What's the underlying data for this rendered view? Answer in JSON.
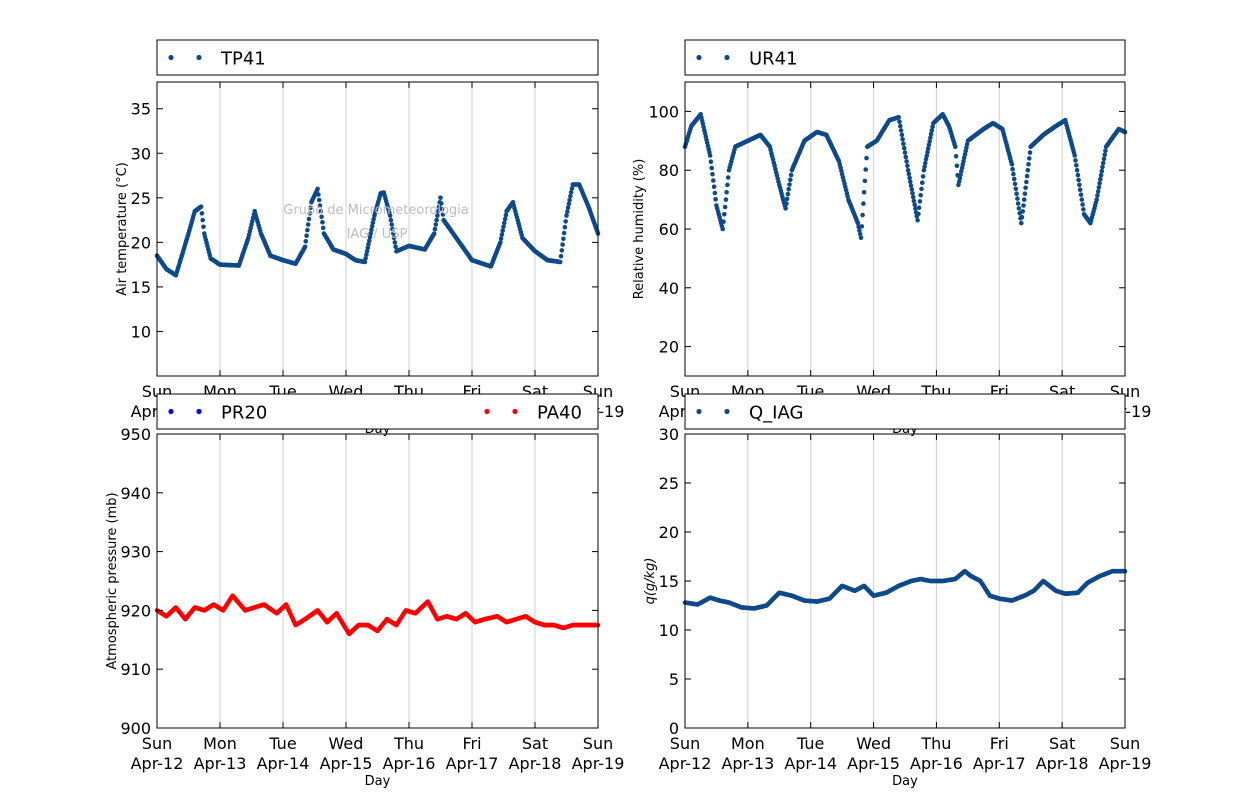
{
  "figure": {
    "x_ticks": [
      {
        "day": "Sun",
        "date": "Apr-12"
      },
      {
        "day": "Mon",
        "date": "Apr-13"
      },
      {
        "day": "Tue",
        "date": "Apr-14"
      },
      {
        "day": "Wed",
        "date": "Apr-15"
      },
      {
        "day": "Thu",
        "date": "Apr-16"
      },
      {
        "day": "Fri",
        "date": "Apr-17"
      },
      {
        "day": "Sat",
        "date": "Apr-18"
      },
      {
        "day": "Sun",
        "date": "Apr-19"
      }
    ],
    "xlabel": "Day",
    "watermark": [
      "Grupo de Micrometeorologia",
      "IAG / USP"
    ]
  },
  "chart_data": [
    {
      "type": "scatter",
      "xlabel": "Day",
      "ylabel": "Air temperature (°C)",
      "xlim": [
        "Apr-12",
        "Apr-19"
      ],
      "ylim": [
        5,
        38
      ],
      "yticks": [
        10,
        15,
        20,
        25,
        30,
        35
      ],
      "grid": "vertical",
      "legend_placement": "top",
      "series": [
        {
          "name": "TP41",
          "color": "#0e4a8a",
          "x": [
            0,
            0.15,
            0.3,
            0.5,
            0.6,
            0.7,
            0.75,
            0.85,
            1.0,
            1.3,
            1.45,
            1.55,
            1.65,
            1.8,
            2.0,
            2.2,
            2.35,
            2.45,
            2.55,
            2.65,
            2.8,
            3.0,
            3.15,
            3.3,
            3.45,
            3.55,
            3.6,
            3.7,
            3.8,
            4.0,
            4.25,
            4.4,
            4.5,
            4.55,
            4.7,
            5.0,
            5.3,
            5.45,
            5.55,
            5.65,
            5.8,
            6.0,
            6.2,
            6.4,
            6.5,
            6.6,
            6.7,
            6.85,
            7.0
          ],
          "y": [
            18.5,
            17.0,
            16.3,
            21,
            23.5,
            24,
            21,
            18.2,
            17.5,
            17.4,
            20.5,
            23.5,
            21,
            18.5,
            18.0,
            17.6,
            19.5,
            24.5,
            26,
            21,
            19.2,
            18.7,
            18.0,
            17.8,
            23,
            25.5,
            25.6,
            23,
            19,
            19.6,
            19.2,
            21,
            25,
            22.5,
            21,
            18.0,
            17.3,
            20,
            23.5,
            24.5,
            20.5,
            19.0,
            18.0,
            17.8,
            23,
            26.5,
            26.5,
            24,
            21
          ]
        }
      ]
    },
    {
      "type": "scatter",
      "xlabel": "Day",
      "ylabel": "Relative humidity (%)",
      "xlim": [
        "Apr-12",
        "Apr-19"
      ],
      "ylim": [
        10,
        110
      ],
      "yticks": [
        20,
        40,
        60,
        80,
        100
      ],
      "grid": "vertical",
      "legend_placement": "top",
      "series": [
        {
          "name": "UR41",
          "color": "#0e4a8a",
          "x": [
            0,
            0.1,
            0.25,
            0.4,
            0.5,
            0.6,
            0.7,
            0.8,
            1.0,
            1.2,
            1.35,
            1.5,
            1.6,
            1.7,
            1.9,
            2.1,
            2.25,
            2.45,
            2.6,
            2.75,
            2.8,
            2.9,
            3.05,
            3.25,
            3.4,
            3.55,
            3.7,
            3.8,
            3.95,
            4.1,
            4.2,
            4.3,
            4.35,
            4.5,
            4.75,
            4.9,
            5.05,
            5.2,
            5.35,
            5.5,
            5.7,
            5.9,
            6.05,
            6.2,
            6.35,
            6.45,
            6.55,
            6.7,
            6.9,
            7.0
          ],
          "y": [
            88,
            95,
            99,
            85,
            68,
            60,
            80,
            88,
            90,
            92,
            88,
            75,
            67,
            80,
            90,
            93,
            92,
            83,
            70,
            62,
            57,
            88,
            90,
            97,
            98,
            80,
            63,
            80,
            96,
            99,
            95,
            88,
            75,
            90,
            94,
            96,
            94,
            82,
            62,
            88,
            92,
            95,
            97,
            85,
            65,
            62,
            70,
            88,
            94,
            93
          ]
        }
      ]
    },
    {
      "type": "scatter",
      "xlabel": "Day",
      "ylabel": "Atmospheric pressure (mb)",
      "xlim": [
        "Apr-12",
        "Apr-19"
      ],
      "ylim": [
        900,
        950
      ],
      "yticks": [
        900,
        910,
        920,
        930,
        940,
        950
      ],
      "grid": "vertical",
      "legend_placement": "top",
      "series": [
        {
          "name": "PR20",
          "color": "#0000ff",
          "x": [],
          "y": []
        },
        {
          "name": "PA40",
          "color": "#ff0000",
          "x": [
            0,
            0.15,
            0.3,
            0.45,
            0.6,
            0.75,
            0.9,
            1.05,
            1.2,
            1.4,
            1.55,
            1.7,
            1.9,
            2.05,
            2.2,
            2.35,
            2.55,
            2.7,
            2.85,
            3.05,
            3.2,
            3.35,
            3.5,
            3.65,
            3.8,
            3.95,
            4.1,
            4.3,
            4.45,
            4.6,
            4.75,
            4.9,
            5.05,
            5.2,
            5.4,
            5.55,
            5.7,
            5.85,
            6.0,
            6.15,
            6.3,
            6.45,
            6.6,
            6.75,
            6.9,
            7.0
          ],
          "y": [
            920,
            919,
            920.5,
            918.5,
            920.5,
            920,
            921,
            920,
            922.5,
            920,
            920.5,
            921,
            919.5,
            921,
            917.5,
            918.5,
            920,
            918,
            919.5,
            916,
            917.5,
            917.5,
            916.5,
            918.5,
            917.5,
            920,
            919.5,
            921.5,
            918.5,
            919,
            918.5,
            919.5,
            918,
            918.5,
            919,
            918,
            918.5,
            919,
            918,
            917.5,
            917.5,
            917,
            917.5,
            917.5,
            917.5,
            917.5
          ]
        }
      ]
    },
    {
      "type": "scatter",
      "xlabel": "Day",
      "ylabel": "q(g/kg)",
      "xlim": [
        "Apr-12",
        "Apr-19"
      ],
      "ylim": [
        0,
        30
      ],
      "yticks": [
        0,
        5,
        10,
        15,
        20,
        25,
        30
      ],
      "grid": "vertical",
      "legend_placement": "top",
      "series": [
        {
          "name": "Q_IAG",
          "color": "#0e4a8a",
          "x": [
            0,
            0.2,
            0.4,
            0.55,
            0.7,
            0.9,
            1.1,
            1.3,
            1.5,
            1.7,
            1.9,
            2.1,
            2.3,
            2.5,
            2.7,
            2.85,
            3.0,
            3.2,
            3.4,
            3.6,
            3.75,
            3.9,
            4.1,
            4.3,
            4.45,
            4.55,
            4.7,
            4.85,
            5.0,
            5.2,
            5.4,
            5.55,
            5.7,
            5.9,
            6.05,
            6.25,
            6.4,
            6.6,
            6.8,
            7.0
          ],
          "y": [
            12.8,
            12.6,
            13.3,
            13.0,
            12.8,
            12.3,
            12.2,
            12.5,
            13.8,
            13.5,
            13.0,
            12.9,
            13.2,
            14.5,
            14.0,
            14.5,
            13.5,
            13.8,
            14.5,
            15.0,
            15.2,
            15.0,
            15.0,
            15.2,
            16.0,
            15.5,
            15.0,
            13.5,
            13.2,
            13.0,
            13.5,
            14.0,
            15.0,
            14.0,
            13.7,
            13.8,
            14.8,
            15.5,
            16.0,
            16.0
          ]
        }
      ]
    }
  ]
}
